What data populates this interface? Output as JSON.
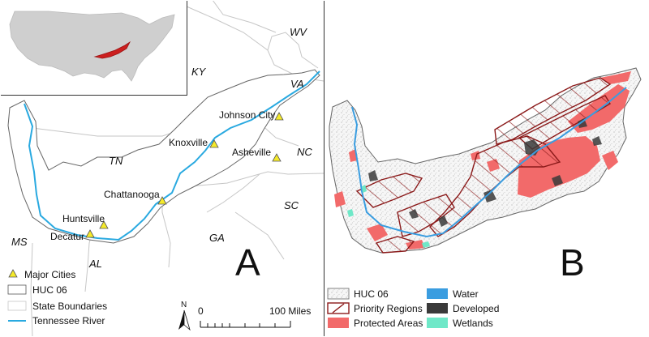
{
  "panel_a": {
    "letter": "A",
    "states": [
      "WV",
      "KY",
      "VA",
      "TN",
      "NC",
      "SC",
      "GA",
      "MS",
      "AL"
    ],
    "cities": [
      "Johnson City",
      "Knoxville",
      "Asheville",
      "Chattanooga",
      "Huntsville",
      "Decatur"
    ],
    "legend": {
      "major_cities": "Major Cities",
      "huc06": "HUC 06",
      "state_boundaries": "State Boundaries",
      "river": "Tennessee River"
    },
    "north_arrow": "N",
    "scale": {
      "start": "0",
      "end": "100 Miles"
    }
  },
  "panel_b": {
    "letter": "B",
    "legend": {
      "huc06": "HUC 06",
      "priority_regions": "Priority Regions",
      "protected_areas": "Protected Areas",
      "water": "Water",
      "developed": "Developed",
      "wetlands": "Wetlands"
    }
  },
  "colors": {
    "river": "#29a9e0",
    "city_marker": "#f5ea2a",
    "protected": "#f26a6a",
    "priority_outline": "#8b1a1a",
    "water": "#3a9de0",
    "developed": "#3a3a3a",
    "wetlands": "#6fe8c8",
    "inset_highlight": "#cc1f1f",
    "inset_land": "#cfcfcf"
  }
}
